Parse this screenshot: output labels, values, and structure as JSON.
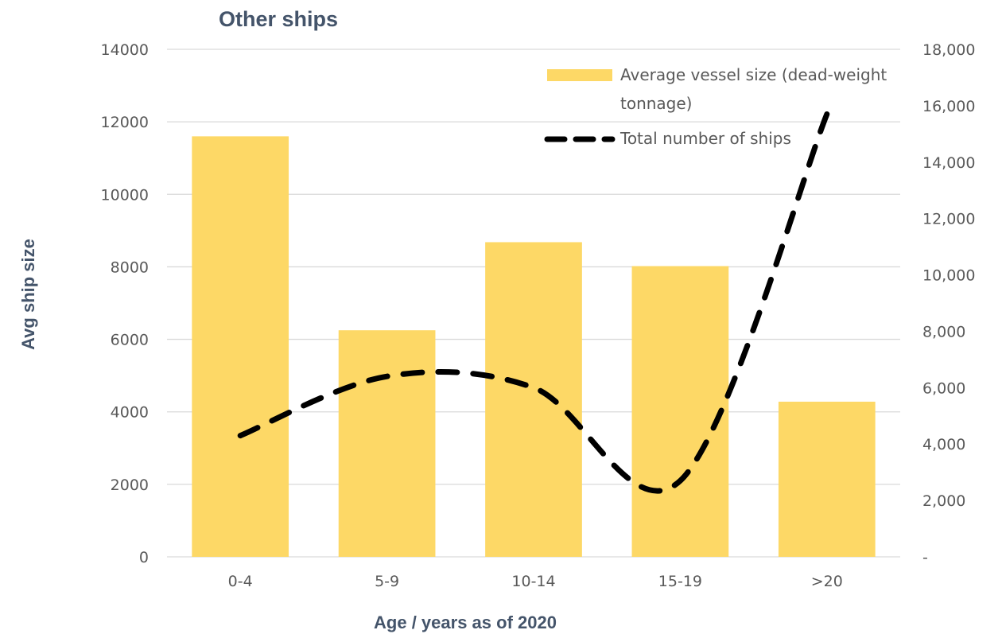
{
  "chart_data": {
    "type": "bar",
    "title": "Other ships",
    "xlabel": "Age  / years as of 2020",
    "ylabel": "Avg ship size",
    "y2label": "",
    "categories": [
      "0-4",
      "5-9",
      "10-14",
      "15-19",
      ">20"
    ],
    "ylim": [
      0,
      14000
    ],
    "y2lim": [
      0,
      18000
    ],
    "yticks": [
      "0",
      "2000",
      "4000",
      "6000",
      "8000",
      "10000",
      "12000",
      "14000"
    ],
    "y2ticks": [
      "-",
      "2,000",
      "4,000",
      "6,000",
      "8,000",
      "10,000",
      "12,000",
      "14,000",
      "16,000",
      "18,000"
    ],
    "grid": true,
    "legend_position": "top-right",
    "series": [
      {
        "name": "Average vessel size (dead-weight tonnage)",
        "legend_lines": [
          "Average vessel size (dead-weight",
          "tonnage)"
        ],
        "type": "bar",
        "axis": "left",
        "color": "#fdd866",
        "values": [
          11600,
          6250,
          8680,
          8020,
          4280
        ]
      },
      {
        "name": "Total number of ships",
        "legend_lines": [
          "Total number of ships"
        ],
        "type": "line",
        "style": "dashed",
        "axis": "right",
        "color": "#000000",
        "values": [
          4300,
          6400,
          6000,
          2700,
          15700
        ]
      }
    ]
  }
}
